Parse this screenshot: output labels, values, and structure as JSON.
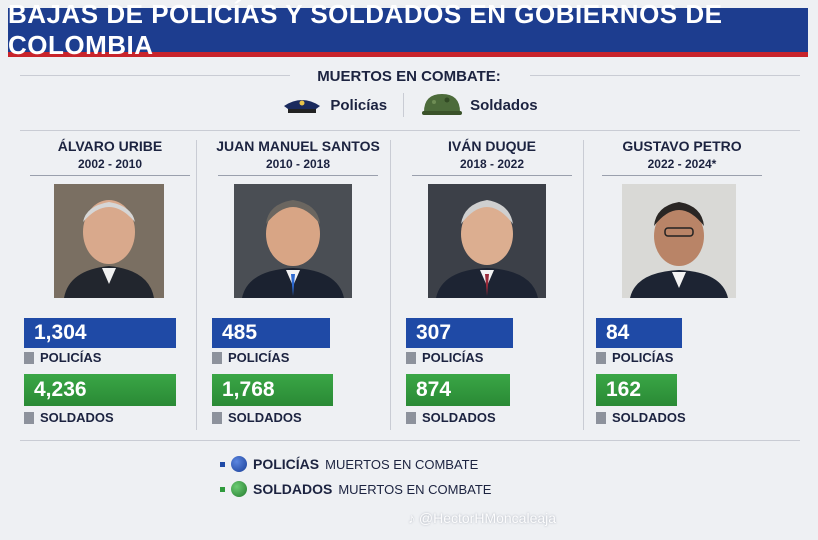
{
  "title": "BAJAS DE POLICÍAS Y SOLDADOS EN GOBIERNOS DE COLOMBIA",
  "subtitle": "MUERTOS EN COMBATE:",
  "legend_top": {
    "police": "Policías",
    "soldiers": "Soldados"
  },
  "colors": {
    "police": "#1f4aa6",
    "soldiers": "#2f9a3c",
    "title_bg": "#1d3d8f",
    "accent_red": "#c8242b"
  },
  "icons": [
    "police-cap-icon",
    "military-helmet-icon",
    "tiktok-icon"
  ],
  "chart_data": {
    "type": "bar",
    "categories": [
      "ÁLVARO URIBE",
      "JUAN MANUEL SANTOS",
      "IVÁN DUQUE",
      "GUSTAVO PETRO"
    ],
    "periods": [
      "2002 - 2010",
      "2010 - 2018",
      "2018 - 2022",
      "2022 - 2024*"
    ],
    "series": [
      {
        "name": "POLICÍAS",
        "values": [
          1304,
          485,
          307,
          84
        ],
        "labels": [
          "1,304",
          "485",
          "307",
          "84"
        ]
      },
      {
        "name": "SOLDADOS",
        "values": [
          4236,
          1768,
          874,
          162
        ],
        "labels": [
          "4,236",
          "1,768",
          "874",
          "162"
        ]
      }
    ],
    "legend": [
      {
        "bold": "POLICÍAS",
        "rest": "MUERTOS EN COMBATE"
      },
      {
        "bold": "SOLDADOS",
        "rest": "MUERTOS EN COMBATE"
      }
    ]
  },
  "watermark": "@HectorHMoncaleaja"
}
